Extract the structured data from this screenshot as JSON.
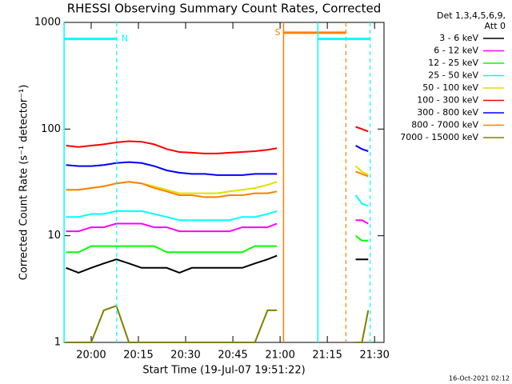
{
  "chart_data": {
    "type": "line",
    "title": "RHESSI Observing Summary Count Rates, Corrected",
    "x_label": "Start Time (19-Jul-07 19:51:22)",
    "y_label": "Corrected Count Rate (s⁻¹ detector⁻¹)",
    "legend_header": [
      "Det 1,3,4,5,6,9,",
      "Att 0"
    ],
    "footer": "16-Oct-2021 02:12",
    "log_y": true,
    "xlim": [
      1191.37,
      1293
    ],
    "ylim": [
      1,
      1000
    ],
    "yticks": [
      1,
      10,
      100,
      1000
    ],
    "xticks": [
      {
        "value": 1200,
        "label": "20:00"
      },
      {
        "value": 1215,
        "label": "20:15"
      },
      {
        "value": 1230,
        "label": "20:30"
      },
      {
        "value": 1245,
        "label": "20:45"
      },
      {
        "value": 1260,
        "label": "21:00"
      },
      {
        "value": 1275,
        "label": "21:15"
      },
      {
        "value": 1290,
        "label": "21:30"
      }
    ],
    "x": [
      1192,
      1196,
      1200,
      1204,
      1208,
      1212,
      1216,
      1220,
      1224,
      1228,
      1232,
      1236,
      1240,
      1244,
      1248,
      1252,
      1256,
      1259,
      1270,
      1284,
      1286,
      1288
    ],
    "series": [
      {
        "name": "3 - 6 keV",
        "color": "#000000",
        "values": [
          5,
          4.5,
          5,
          5.5,
          6,
          5.5,
          5,
          5,
          5,
          4.5,
          5,
          5,
          5,
          5,
          5,
          5.5,
          6,
          6.5,
          null,
          6,
          6,
          6
        ]
      },
      {
        "name": "6 - 12 keV",
        "color": "#ff00ff",
        "values": [
          11,
          11,
          12,
          12,
          13,
          13,
          13,
          12,
          12,
          11,
          11,
          11,
          11,
          11,
          12,
          12,
          12,
          13,
          null,
          14,
          14,
          13
        ]
      },
      {
        "name": "12 - 25 keV",
        "color": "#00ff00",
        "values": [
          7,
          7,
          8,
          8,
          8,
          8,
          8,
          8,
          7,
          7,
          7,
          7,
          7,
          7,
          7,
          8,
          8,
          8,
          null,
          10,
          9,
          9
        ]
      },
      {
        "name": "25 - 50 keV",
        "color": "#00ffff",
        "values": [
          15,
          15,
          16,
          16,
          17,
          17,
          17,
          16,
          15,
          14,
          14,
          14,
          14,
          14,
          15,
          15,
          16,
          17,
          null,
          24,
          20,
          19
        ]
      },
      {
        "name": "50 - 100 keV",
        "color": "#e0e000",
        "values": [
          27,
          27,
          28,
          29,
          31,
          32,
          31,
          29,
          27,
          25,
          25,
          25,
          25,
          26,
          27,
          28,
          30,
          32,
          null,
          45,
          40,
          37
        ]
      },
      {
        "name": "100 - 300 keV",
        "color": "#ff0000",
        "values": [
          70,
          68,
          70,
          72,
          75,
          77,
          76,
          72,
          65,
          61,
          60,
          59,
          59,
          60,
          61,
          62,
          64,
          66,
          null,
          105,
          100,
          95
        ]
      },
      {
        "name": "300 - 800 keV",
        "color": "#0000ff",
        "values": [
          46,
          45,
          45,
          46,
          48,
          49,
          48,
          45,
          41,
          39,
          38,
          38,
          37,
          37,
          37,
          38,
          38,
          38,
          null,
          70,
          65,
          62
        ]
      },
      {
        "name": "800 - 7000 keV",
        "color": "#ff8000",
        "values": [
          27,
          27,
          28,
          29,
          31,
          32,
          31,
          28,
          26,
          24,
          24,
          23,
          23,
          24,
          24,
          25,
          25,
          26,
          null,
          40,
          38,
          36
        ]
      },
      {
        "name": "7000 - 15000 keV",
        "color": "#808000",
        "values": [
          1,
          1,
          1,
          2,
          2.2,
          1,
          1,
          1,
          1,
          1,
          1,
          1,
          1,
          1,
          1,
          1,
          2,
          2,
          null,
          1,
          1,
          2
        ]
      }
    ],
    "intervals": [
      {
        "label": "N",
        "color": "#00ffff",
        "start": 1191.4,
        "end": 1208.1,
        "level": 700
      },
      {
        "label": "S",
        "color": "#ff8000",
        "start": 1261.1,
        "end": 1280.9,
        "level": 800
      },
      {
        "color": "#00ffff",
        "start": 1272,
        "end": 1288.6,
        "level": 700
      }
    ]
  }
}
